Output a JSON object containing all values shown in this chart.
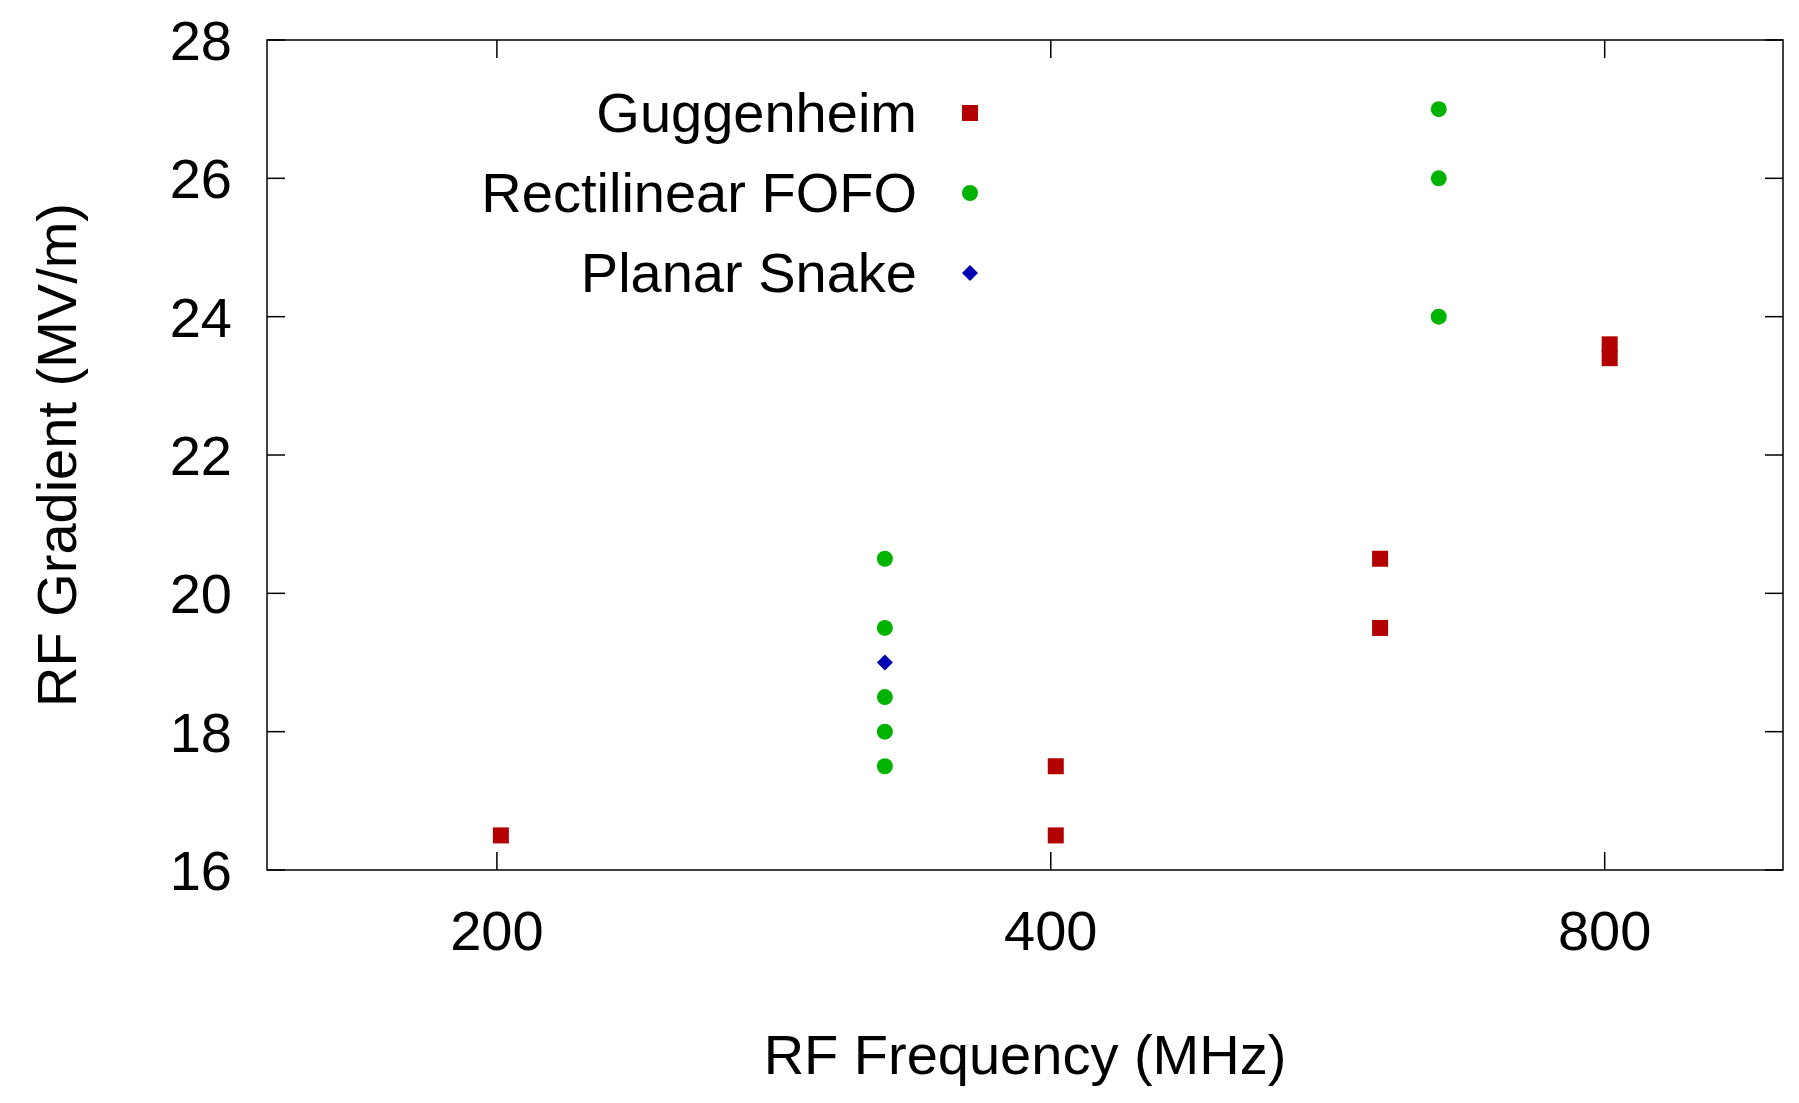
{
  "chart_data": {
    "type": "scatter",
    "xlabel": "RF Frequency (MHz)",
    "ylabel": "RF Gradient (MV/m)",
    "log": "x",
    "xlim": [
      150,
      1000
    ],
    "xticks": [
      200,
      400,
      800
    ],
    "ylim": [
      16,
      28
    ],
    "yticks": [
      16,
      18,
      20,
      22,
      24,
      26,
      28
    ],
    "grid": false,
    "legend": "top left",
    "series": [
      {
        "name": "Guggenheim",
        "color": "#b30000",
        "marker": "square",
        "x": [
          201,
          402.5,
          402.5,
          604,
          604,
          805,
          805
        ],
        "values": [
          16.5,
          17.5,
          16.5,
          20.5,
          19.5,
          23.6,
          23.4
        ]
      },
      {
        "name": "Rectilinear FOFO",
        "color": "#00b300",
        "marker": "circle",
        "x": [
          325,
          325,
          325,
          325,
          325,
          650,
          650,
          650
        ],
        "values": [
          20.5,
          19.5,
          18.5,
          18,
          17.5,
          27,
          26,
          24
        ]
      },
      {
        "name": "Planar Snake",
        "color": "#0000b3",
        "marker": "diamond",
        "x": [
          325
        ],
        "values": [
          19
        ]
      }
    ]
  }
}
